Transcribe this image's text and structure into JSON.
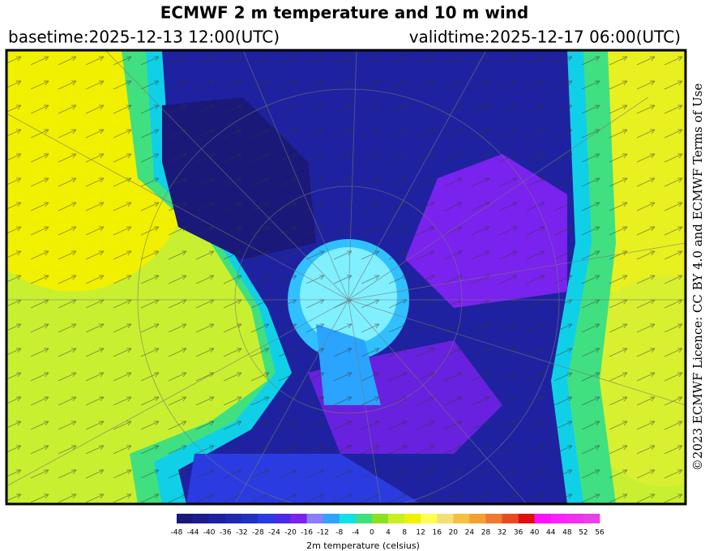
{
  "header": {
    "title": "ECMWF 2 m temperature and 10 m wind",
    "basetime": "basetime:2025-12-13 12:00(UTC)",
    "validtime": "validtime:2025-12-17 06:00(UTC)"
  },
  "legend": {
    "title": "2m temperature (celsius)",
    "ticks": [
      -48,
      -44,
      -40,
      -36,
      -32,
      -28,
      -24,
      -20,
      -16,
      -12,
      -8,
      -4,
      0,
      4,
      8,
      12,
      16,
      20,
      24,
      28,
      32,
      36,
      40,
      44,
      48,
      52,
      56
    ],
    "colors": [
      "#1a1878",
      "#1c1c8c",
      "#1e22a0",
      "#2028b0",
      "#2030c0",
      "#2a3ce0",
      "#4a2ae6",
      "#7a22ee",
      "#8c7cff",
      "#2aa4ff",
      "#10e0e8",
      "#40e080",
      "#8ce020",
      "#c8f020",
      "#f0f000",
      "#ffff50",
      "#f4e070",
      "#f4c040",
      "#f4a030",
      "#f07830",
      "#e84a20",
      "#e01010",
      "#ff10ff",
      "#ff20ff",
      "#f030f0",
      "#e840e8"
    ]
  },
  "credit": "©2023 ECMWF Licence: CC BY 4.0 and ECMWF Terms of Use"
}
